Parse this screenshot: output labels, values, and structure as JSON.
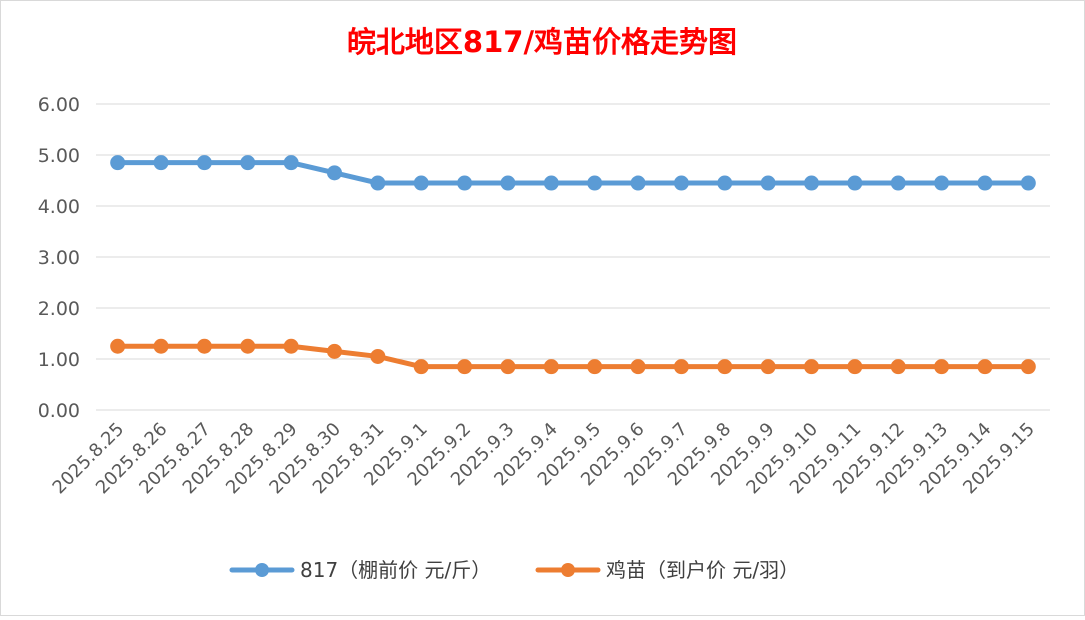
{
  "chart_data": {
    "type": "line",
    "title": "皖北地区817/鸡苗价格走势图",
    "title_color": "#ff0000",
    "xlabel": "",
    "ylabel": "",
    "ylim": [
      0,
      6
    ],
    "yticks": [
      "0.00",
      "1.00",
      "2.00",
      "3.00",
      "4.00",
      "5.00",
      "6.00"
    ],
    "grid": true,
    "legend_position": "bottom",
    "categories": [
      "2025.8.25",
      "2025.8.26",
      "2025.8.27",
      "2025.8.28",
      "2025.8.29",
      "2025.8.30",
      "2025.8.31",
      "2025.9.1",
      "2025.9.2",
      "2025.9.3",
      "2025.9.4",
      "2025.9.5",
      "2025.9.6",
      "2025.9.7",
      "2025.9.8",
      "2025.9.9",
      "2025.9.10",
      "2025.9.11",
      "2025.9.12",
      "2025.9.13",
      "2025.9.14",
      "2025.9.15"
    ],
    "series": [
      {
        "name": "817（棚前价 元/斤）",
        "color": "#5b9bd5",
        "values": [
          4.85,
          4.85,
          4.85,
          4.85,
          4.85,
          4.65,
          4.45,
          4.45,
          4.45,
          4.45,
          4.45,
          4.45,
          4.45,
          4.45,
          4.45,
          4.45,
          4.45,
          4.45,
          4.45,
          4.45,
          4.45,
          4.45
        ]
      },
      {
        "name": "鸡苗（到户价 元/羽）",
        "color": "#ed7d31",
        "values": [
          1.25,
          1.25,
          1.25,
          1.25,
          1.25,
          1.15,
          1.05,
          0.85,
          0.85,
          0.85,
          0.85,
          0.85,
          0.85,
          0.85,
          0.85,
          0.85,
          0.85,
          0.85,
          0.85,
          0.85,
          0.85,
          0.85
        ]
      }
    ]
  }
}
